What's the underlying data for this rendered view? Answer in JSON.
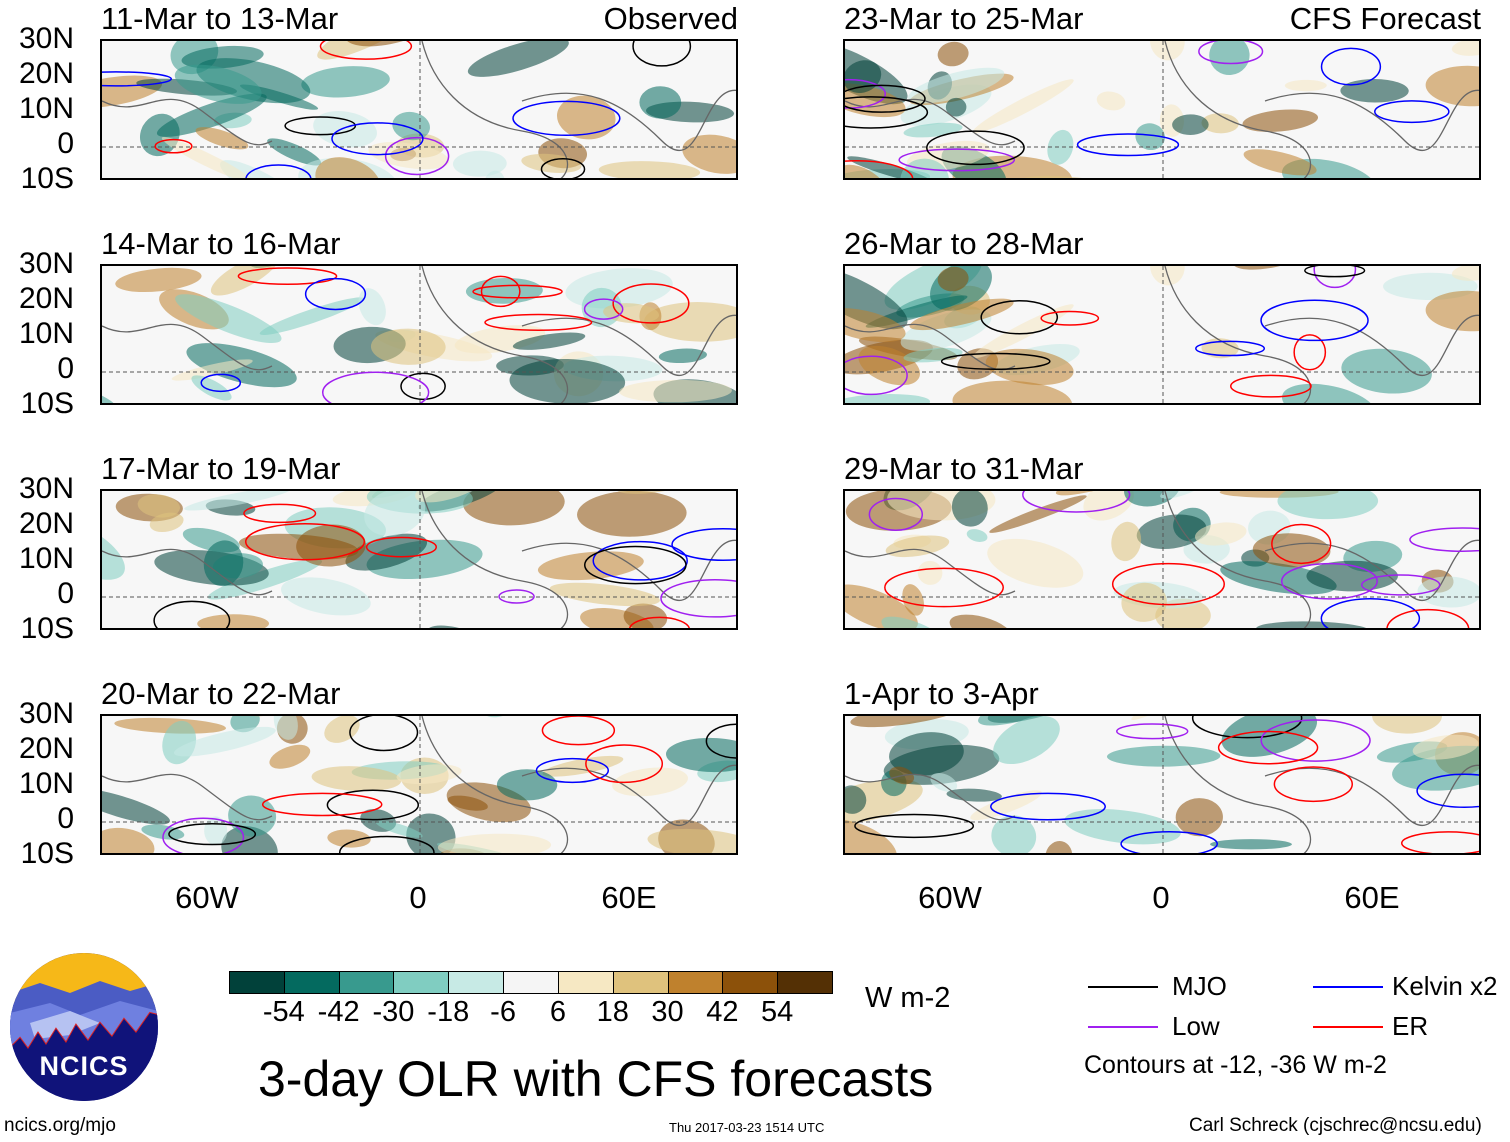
{
  "panels": [
    {
      "title": "11-Mar to 13-Mar",
      "label": "Observed",
      "col": 0,
      "row": 0,
      "seed": 3
    },
    {
      "title": "14-Mar to 16-Mar",
      "col": 0,
      "row": 1,
      "seed": 7
    },
    {
      "title": "17-Mar to 19-Mar",
      "col": 0,
      "row": 2,
      "seed": 11
    },
    {
      "title": "20-Mar to 22-Mar",
      "col": 0,
      "row": 3,
      "seed": 17
    },
    {
      "title": "23-Mar to 25-Mar",
      "label": "CFS Forecast",
      "col": 1,
      "row": 0,
      "seed": 23
    },
    {
      "title": "26-Mar to 28-Mar",
      "col": 1,
      "row": 1,
      "seed": 29
    },
    {
      "title": "29-Mar to 31-Mar",
      "col": 1,
      "row": 2,
      "seed": 31
    },
    {
      "title": "1-Apr to 3-Apr",
      "col": 1,
      "row": 3,
      "seed": 37
    }
  ],
  "lat_labels": [
    "30N",
    "20N",
    "10N",
    "0",
    "10S"
  ],
  "lon_labels": [
    "60W",
    "0",
    "60E"
  ],
  "colorbar": {
    "colors": [
      "#01413a",
      "#046a5f",
      "#389a8e",
      "#80cdc1",
      "#c7eae5",
      "#f5f5f5",
      "#f6e8c3",
      "#dfc27d",
      "#bf812d",
      "#8c510a",
      "#543005"
    ],
    "ticks": [
      "-54",
      "-42",
      "-30",
      "-18",
      "-6",
      "6",
      "18",
      "30",
      "42",
      "54"
    ],
    "units": "W m-2"
  },
  "legend": {
    "items": [
      {
        "label": "MJO",
        "color": "#000000"
      },
      {
        "label": "Kelvin x2",
        "color": "#0000ff"
      },
      {
        "label": "Low",
        "color": "#a020f0"
      },
      {
        "label": "ER",
        "color": "#ff0000"
      }
    ],
    "note": "Contours at -12, -36 W m-2"
  },
  "title": "3-day OLR with CFS forecasts",
  "logo_text": "NCICS",
  "footer": {
    "left": "ncics.org/mjo",
    "center": "Thu 2017-03-23 1514 UTC",
    "right": "Carl Schreck (cjschrec@ncsu.edu)"
  }
}
